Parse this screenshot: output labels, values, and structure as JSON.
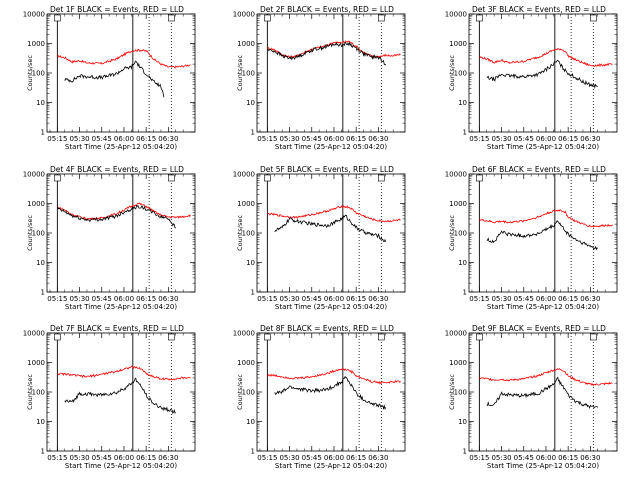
{
  "chart_data": [
    {
      "type": "line",
      "title": "Det 1F BLACK = Events, RED = LLD",
      "xlabel": "Start Time (25-Apr-12 05:04:20)",
      "ylabel": "Counts/sec",
      "yscale": "log",
      "ylim": [
        1,
        10000
      ],
      "xticks": [
        "05:15",
        "05:30",
        "05:45",
        "06:00",
        "06:15",
        "06:30"
      ],
      "yticks": [
        "1",
        "10",
        "100",
        "1000",
        "10000"
      ],
      "series": [
        {
          "color": "#ff0000",
          "x": [
            0,
            5,
            10,
            15,
            20,
            30,
            40,
            45,
            50,
            55,
            60,
            62,
            65,
            70,
            75,
            80,
            85,
            90
          ],
          "y": [
            380,
            330,
            240,
            260,
            220,
            210,
            300,
            420,
            560,
            600,
            560,
            450,
            300,
            200,
            160,
            160,
            170,
            190
          ]
        },
        {
          "color": "#000000",
          "x": [
            5,
            10,
            15,
            20,
            30,
            40,
            45,
            50,
            53,
            55,
            58,
            60,
            65,
            70,
            72
          ],
          "y": [
            60,
            55,
            80,
            75,
            70,
            95,
            140,
            160,
            250,
            180,
            120,
            95,
            50,
            35,
            15
          ]
        }
      ]
    },
    {
      "type": "line",
      "title": "Det 2F BLACK = Events, RED = LLD",
      "xlabel": "Start Time (25-Apr-12 05:04:20)",
      "ylabel": "Counts/sec",
      "yscale": "log",
      "ylim": [
        1,
        10000
      ],
      "xticks": [
        "05:15",
        "05:30",
        "05:45",
        "06:00",
        "06:15",
        "06:30"
      ],
      "yticks": [
        "1",
        "10",
        "100",
        "1000",
        "10000"
      ],
      "series": [
        {
          "color": "#ff0000",
          "x": [
            0,
            5,
            10,
            15,
            20,
            30,
            40,
            45,
            50,
            55,
            60,
            65,
            70,
            75,
            80,
            85,
            90
          ],
          "y": [
            700,
            620,
            420,
            350,
            380,
            650,
            850,
            1100,
            1050,
            1200,
            800,
            500,
            380,
            360,
            400,
            380,
            420
          ]
        },
        {
          "color": "#000000",
          "x": [
            0,
            5,
            10,
            15,
            20,
            30,
            40,
            45,
            50,
            55,
            60,
            65,
            70,
            75,
            80
          ],
          "y": [
            620,
            550,
            380,
            320,
            350,
            600,
            780,
            950,
            900,
            1000,
            700,
            450,
            350,
            340,
            200
          ]
        }
      ]
    },
    {
      "type": "line",
      "title": "Det 3F BLACK = Events, RED = LLD",
      "xlabel": "Start Time (25-Apr-12 05:04:20)",
      "ylabel": "Counts/sec",
      "yscale": "log",
      "ylim": [
        1,
        10000
      ],
      "xticks": [
        "05:15",
        "05:30",
        "05:45",
        "06:00",
        "06:15",
        "06:30"
      ],
      "yticks": [
        "1",
        "10",
        "100",
        "1000",
        "10000"
      ],
      "series": [
        {
          "color": "#ff0000",
          "x": [
            0,
            5,
            10,
            15,
            20,
            30,
            40,
            45,
            50,
            55,
            58,
            60,
            65,
            70,
            75,
            80,
            85,
            90
          ],
          "y": [
            350,
            300,
            230,
            270,
            220,
            250,
            350,
            450,
            600,
            650,
            550,
            380,
            280,
            220,
            180,
            180,
            190,
            200
          ]
        },
        {
          "color": "#000000",
          "x": [
            5,
            10,
            15,
            20,
            30,
            40,
            45,
            50,
            53,
            55,
            58,
            60,
            65,
            70,
            75,
            80
          ],
          "y": [
            70,
            60,
            90,
            80,
            75,
            90,
            130,
            200,
            260,
            180,
            120,
            100,
            70,
            50,
            40,
            35
          ]
        }
      ]
    },
    {
      "type": "line",
      "title": "Det 4F BLACK = Events, RED = LLD",
      "xlabel": "Start Time (25-Apr-12 05:04:20)",
      "ylabel": "Counts/sec",
      "yscale": "log",
      "ylim": [
        1,
        10000
      ],
      "xticks": [
        "05:15",
        "05:30",
        "05:45",
        "06:00",
        "06:15",
        "06:30"
      ],
      "yticks": [
        "1",
        "10",
        "100",
        "1000",
        "10000"
      ],
      "series": [
        {
          "color": "#ff0000",
          "x": [
            0,
            5,
            10,
            15,
            20,
            30,
            40,
            45,
            50,
            55,
            60,
            65,
            70,
            75,
            80,
            85,
            90
          ],
          "y": [
            750,
            600,
            420,
            350,
            300,
            320,
            450,
            600,
            800,
            1000,
            800,
            550,
            400,
            350,
            340,
            360,
            400
          ]
        },
        {
          "color": "#000000",
          "x": [
            0,
            5,
            10,
            15,
            20,
            30,
            40,
            45,
            50,
            55,
            60,
            65,
            70,
            75,
            80
          ],
          "y": [
            680,
            520,
            380,
            320,
            280,
            290,
            380,
            520,
            650,
            800,
            650,
            480,
            350,
            320,
            150
          ]
        }
      ]
    },
    {
      "type": "line",
      "title": "Det 5F BLACK = Events, RED = LLD",
      "xlabel": "Start Time (25-Apr-12 05:04:20)",
      "ylabel": "Counts/sec",
      "yscale": "log",
      "ylim": [
        1,
        10000
      ],
      "xticks": [
        "05:15",
        "05:30",
        "05:45",
        "06:00",
        "06:15",
        "06:30"
      ],
      "yticks": [
        "1",
        "10",
        "100",
        "1000",
        "10000"
      ],
      "series": [
        {
          "color": "#ff0000",
          "x": [
            0,
            5,
            10,
            15,
            20,
            30,
            40,
            45,
            50,
            55,
            58,
            60,
            65,
            70,
            75,
            80,
            85,
            90
          ],
          "y": [
            450,
            420,
            380,
            350,
            340,
            420,
            550,
            650,
            800,
            750,
            600,
            480,
            380,
            300,
            260,
            250,
            260,
            280
          ]
        },
        {
          "color": "#000000",
          "x": [
            5,
            10,
            15,
            20,
            30,
            40,
            45,
            50,
            53,
            55,
            58,
            60,
            65,
            70,
            75,
            80
          ],
          "y": [
            120,
            150,
            300,
            250,
            200,
            180,
            220,
            300,
            380,
            280,
            200,
            150,
            110,
            90,
            80,
            50
          ]
        }
      ]
    },
    {
      "type": "line",
      "title": "Det 6F BLACK = Events, RED = LLD",
      "xlabel": "Start Time (25-Apr-12 05:04:20)",
      "ylabel": "Counts/sec",
      "yscale": "log",
      "ylim": [
        1,
        10000
      ],
      "xticks": [
        "05:15",
        "05:30",
        "05:45",
        "06:00",
        "06:15",
        "06:30"
      ],
      "yticks": [
        "1",
        "10",
        "100",
        "1000",
        "10000"
      ],
      "series": [
        {
          "color": "#ff0000",
          "x": [
            0,
            5,
            10,
            15,
            20,
            30,
            40,
            45,
            50,
            55,
            58,
            60,
            65,
            70,
            75,
            80,
            85,
            90
          ],
          "y": [
            280,
            260,
            230,
            250,
            230,
            260,
            350,
            450,
            550,
            600,
            500,
            350,
            250,
            200,
            170,
            170,
            180,
            190
          ]
        },
        {
          "color": "#000000",
          "x": [
            5,
            10,
            15,
            20,
            30,
            40,
            45,
            50,
            53,
            55,
            58,
            60,
            65,
            70,
            75,
            80
          ],
          "y": [
            60,
            50,
            110,
            90,
            80,
            95,
            130,
            170,
            260,
            180,
            120,
            90,
            60,
            45,
            35,
            30
          ]
        }
      ]
    },
    {
      "type": "line",
      "title": "Det 7F BLACK = Events, RED = LLD",
      "xlabel": "Start Time (25-Apr-12 05:04:20)",
      "ylabel": "Counts/sec",
      "yscale": "log",
      "ylim": [
        1,
        10000
      ],
      "xticks": [
        "05:15",
        "05:30",
        "05:45",
        "06:00",
        "06:15",
        "06:30"
      ],
      "yticks": [
        "1",
        "10",
        "100",
        "1000",
        "10000"
      ],
      "series": [
        {
          "color": "#ff0000",
          "x": [
            0,
            5,
            10,
            15,
            20,
            30,
            40,
            45,
            50,
            55,
            58,
            60,
            65,
            70,
            75,
            80,
            85,
            90
          ],
          "y": [
            420,
            400,
            380,
            350,
            330,
            400,
            500,
            600,
            700,
            650,
            550,
            420,
            330,
            280,
            270,
            280,
            300,
            310
          ]
        },
        {
          "color": "#000000",
          "x": [
            5,
            10,
            15,
            20,
            30,
            40,
            45,
            50,
            53,
            55,
            58,
            60,
            65,
            70,
            75,
            80
          ],
          "y": [
            50,
            45,
            90,
            85,
            80,
            95,
            130,
            190,
            270,
            190,
            120,
            80,
            40,
            30,
            25,
            20
          ]
        }
      ]
    },
    {
      "type": "line",
      "title": "Det 8F BLACK = Events, RED = LLD",
      "xlabel": "Start Time (25-Apr-12 05:04:20)",
      "ylabel": "Counts/sec",
      "yscale": "log",
      "ylim": [
        1,
        10000
      ],
      "xticks": [
        "05:15",
        "05:30",
        "05:45",
        "06:00",
        "06:15",
        "06:30"
      ],
      "yticks": [
        "1",
        "10",
        "100",
        "1000",
        "10000"
      ],
      "series": [
        {
          "color": "#ff0000",
          "x": [
            0,
            5,
            10,
            15,
            20,
            30,
            40,
            45,
            50,
            55,
            58,
            60,
            65,
            70,
            75,
            80,
            85,
            90
          ],
          "y": [
            380,
            360,
            330,
            300,
            290,
            330,
            420,
            520,
            600,
            550,
            450,
            350,
            280,
            230,
            210,
            210,
            220,
            230
          ]
        },
        {
          "color": "#000000",
          "x": [
            5,
            10,
            15,
            20,
            30,
            40,
            45,
            50,
            53,
            55,
            58,
            60,
            65,
            70,
            75,
            80
          ],
          "y": [
            90,
            100,
            150,
            130,
            110,
            120,
            160,
            220,
            320,
            220,
            140,
            90,
            55,
            40,
            35,
            30
          ]
        }
      ]
    },
    {
      "type": "line",
      "title": "Det 9F BLACK = Events, RED = LLD",
      "xlabel": "Start Time (25-Apr-12 05:04:20)",
      "ylabel": "Counts/sec",
      "yscale": "log",
      "ylim": [
        1,
        10000
      ],
      "xticks": [
        "05:15",
        "05:30",
        "05:45",
        "06:00",
        "06:15",
        "06:30"
      ],
      "yticks": [
        "1",
        "10",
        "100",
        "1000",
        "10000"
      ],
      "series": [
        {
          "color": "#ff0000",
          "x": [
            0,
            5,
            10,
            15,
            20,
            30,
            40,
            45,
            50,
            55,
            58,
            60,
            65,
            70,
            75,
            80,
            85,
            90
          ],
          "y": [
            300,
            280,
            260,
            270,
            250,
            280,
            360,
            450,
            550,
            600,
            480,
            350,
            260,
            210,
            180,
            180,
            190,
            200
          ]
        },
        {
          "color": "#000000",
          "x": [
            5,
            10,
            15,
            20,
            30,
            40,
            45,
            50,
            53,
            55,
            58,
            60,
            65,
            70,
            75,
            80
          ],
          "y": [
            40,
            35,
            90,
            80,
            75,
            90,
            130,
            180,
            280,
            190,
            120,
            80,
            50,
            38,
            32,
            30
          ]
        }
      ]
    }
  ]
}
